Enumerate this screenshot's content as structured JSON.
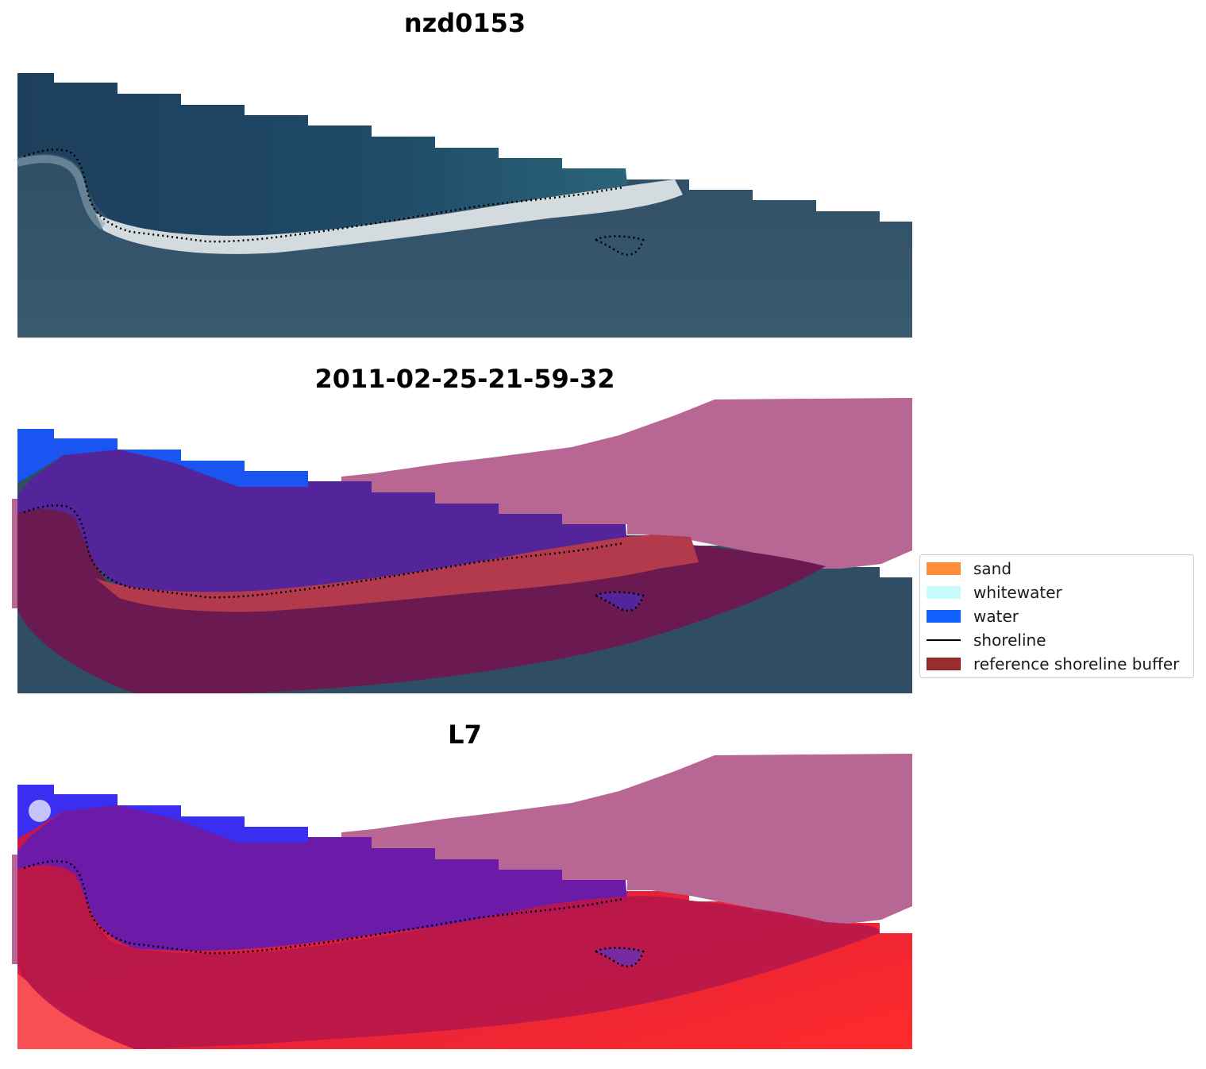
{
  "panels": [
    {
      "title": "nzd0153",
      "type": "rgb"
    },
    {
      "title": "2011-02-25-21-59-32",
      "type": "classified"
    },
    {
      "title": "L7",
      "type": "index"
    }
  ],
  "legend": {
    "items": [
      {
        "label": "sand",
        "kind": "patch",
        "color": "#ff8c3b"
      },
      {
        "label": "whitewater",
        "kind": "patch",
        "color": "#c8fbfb"
      },
      {
        "label": "water",
        "kind": "patch",
        "color": "#1060ff"
      },
      {
        "label": "shoreline",
        "kind": "line",
        "color": "#000000"
      },
      {
        "label": "reference shoreline buffer",
        "kind": "patch",
        "color": "#9b2d2d",
        "edge": "#7a1f1f"
      }
    ]
  },
  "colors": {
    "ocean": "#1d4866",
    "land": "#33546c",
    "beach": "#e6ecef",
    "classified_water": "#1a55f2",
    "classified_ocean_overlay": "#53249a",
    "buffer_overlay": "#6a1a50",
    "sand_overlay": "#b23a4c",
    "nodata_mask": "#b86694",
    "index_low": "#6c1aa8",
    "index_high": "#c2164a",
    "index_bright": "#ff2b2b"
  }
}
